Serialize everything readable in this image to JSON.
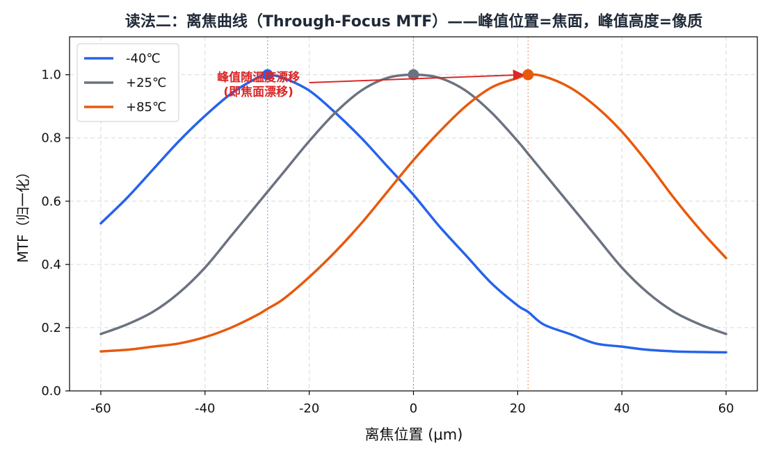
{
  "chart_data": {
    "type": "line",
    "title": "读法二：离焦曲线（Through-Focus MTF）——峰值位置=焦面，峰值高度=像质",
    "xlabel": "离焦位置 (μm)",
    "ylabel": "MTF（归一化）",
    "xlim": [
      -66,
      66
    ],
    "ylim": [
      0.0,
      1.12
    ],
    "grid": true,
    "legend_position": "top-left",
    "x_ticks": [
      -60,
      -40,
      -20,
      0,
      20,
      40,
      60
    ],
    "y_ticks": [
      0.0,
      0.2,
      0.4,
      0.6,
      0.8,
      1.0
    ],
    "x": [
      -60,
      -55,
      -50,
      -45,
      -40,
      -35,
      -30,
      -28,
      -25,
      -20,
      -15,
      -10,
      -5,
      0,
      5,
      10,
      15,
      20,
      22,
      25,
      30,
      35,
      40,
      45,
      50,
      55,
      60
    ],
    "series": [
      {
        "name": "-40℃",
        "color": "#2563eb",
        "peak_x": -28,
        "peak_y": 1.0,
        "values": [
          0.53,
          0.61,
          0.7,
          0.79,
          0.87,
          0.94,
          0.99,
          1.0,
          0.99,
          0.95,
          0.88,
          0.8,
          0.71,
          0.62,
          0.52,
          0.43,
          0.34,
          0.27,
          0.25,
          0.21,
          0.18,
          0.15,
          0.14,
          0.13,
          0.125,
          0.123,
          0.122
        ]
      },
      {
        "name": "+25℃",
        "color": "#6b7280",
        "peak_x": 0,
        "peak_y": 1.0,
        "values": [
          0.18,
          0.21,
          0.25,
          0.31,
          0.39,
          0.49,
          0.59,
          0.63,
          0.69,
          0.79,
          0.88,
          0.95,
          0.99,
          1.0,
          0.99,
          0.95,
          0.88,
          0.79,
          0.75,
          0.69,
          0.59,
          0.49,
          0.39,
          0.31,
          0.25,
          0.21,
          0.18
        ]
      },
      {
        "name": "+85℃",
        "color": "#e8590c",
        "peak_x": 22,
        "peak_y": 1.0,
        "values": [
          0.125,
          0.13,
          0.14,
          0.15,
          0.17,
          0.2,
          0.24,
          0.26,
          0.29,
          0.36,
          0.44,
          0.53,
          0.63,
          0.73,
          0.82,
          0.9,
          0.96,
          0.99,
          1.0,
          0.995,
          0.96,
          0.9,
          0.82,
          0.72,
          0.61,
          0.51,
          0.42
        ]
      }
    ],
    "annotation": {
      "lines": [
        "峰值随温度漂移",
        "(即焦面漂移)"
      ],
      "color": "#dc2626",
      "arrow_from": [
        -20,
        0.975
      ],
      "arrow_to": [
        21,
        1.0
      ]
    }
  }
}
